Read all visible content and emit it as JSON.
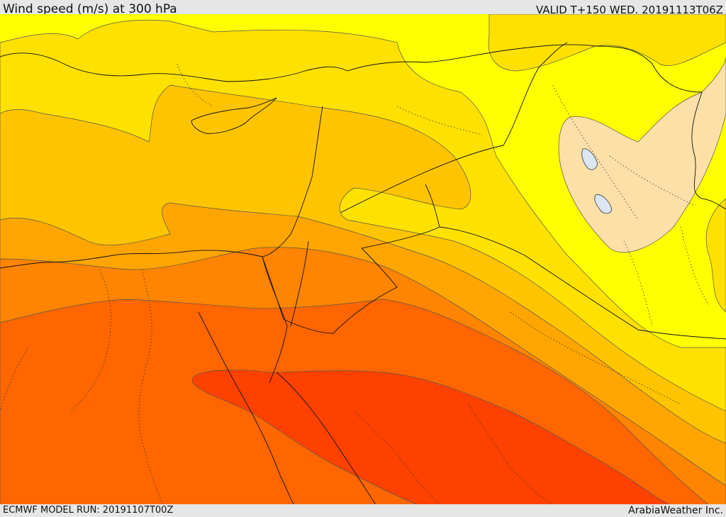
{
  "header": {
    "title": "Wind speed (m/s) at 300 hPa",
    "valid": "VALID T+150 WED. 20191113T06Z"
  },
  "footer": {
    "model_run": "ECMWF MODEL RUN: 20191107T00Z",
    "credit": "ArabiaWeather Inc."
  },
  "palette": {
    "band_1": "#ffff00",
    "band_2": "#ffe100",
    "band_3": "#ffc400",
    "band_4": "#ffa500",
    "band_5": "#ff8400",
    "band_6": "#ff6600",
    "band_7": "#ff4100",
    "calm": "#fde0a8",
    "lake": "#dce6f0"
  }
}
